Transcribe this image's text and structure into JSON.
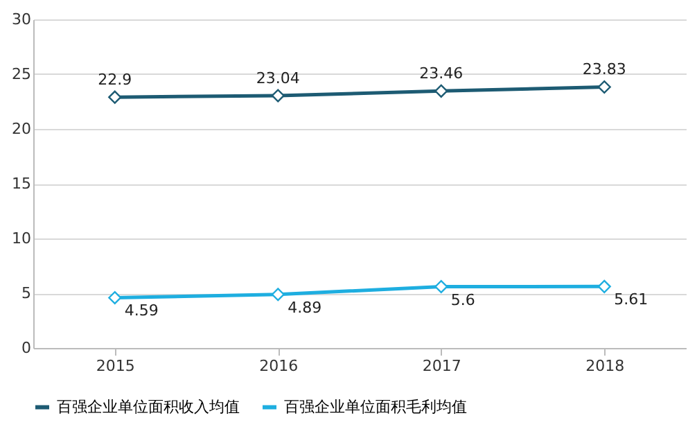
{
  "chart_data": {
    "type": "line",
    "categories": [
      "2015",
      "2016",
      "2017",
      "2018"
    ],
    "series": [
      {
        "name": "百强企业单位面积收入均值",
        "color": "#1d5b73",
        "values": [
          22.9,
          23.04,
          23.46,
          23.83
        ]
      },
      {
        "name": "百强企业单位面积毛利均值",
        "color": "#1eaee0",
        "values": [
          4.59,
          4.89,
          5.6,
          5.61
        ]
      }
    ],
    "ylim": [
      0,
      30
    ],
    "yticks": [
      0,
      5,
      10,
      15,
      20,
      25,
      30
    ],
    "grid": "y",
    "legend": "bottom",
    "marker": "diamond",
    "line_style": "solid",
    "data_labels": true
  }
}
